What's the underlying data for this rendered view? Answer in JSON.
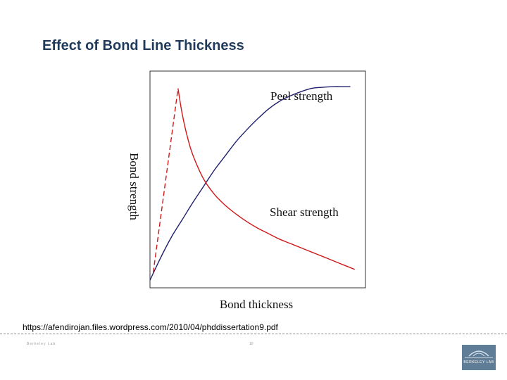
{
  "slide": {
    "title": "Effect of Bond Line Thickness",
    "source": "https://afendirojan.files.wordpress.com/2010/04/phddissertation9.pdf",
    "footer_left": "Berkeley Lab",
    "page_number": "10"
  },
  "logo": {
    "text": "BERKELEY LAB"
  },
  "chart_data": {
    "type": "line",
    "title": "",
    "xlabel": "Bond thickness",
    "ylabel": "Bond strength",
    "xlim": [
      0,
      10
    ],
    "ylim": [
      0,
      10
    ],
    "grid": false,
    "series": [
      {
        "name": "Peel strength",
        "color": "#1f1f6e",
        "style": "solid",
        "x": [
          0,
          0.5,
          1,
          1.5,
          2,
          2.5,
          3,
          3.5,
          4,
          4.5,
          5,
          5.5,
          6,
          6.5,
          7,
          7.5,
          8,
          8.5,
          9,
          9.3
        ],
        "y": [
          0.35,
          1.4,
          2.35,
          3.15,
          3.95,
          4.7,
          5.45,
          6.1,
          6.75,
          7.3,
          7.8,
          8.25,
          8.6,
          8.85,
          9.05,
          9.2,
          9.25,
          9.28,
          9.28,
          9.28
        ]
      },
      {
        "name": "Shear strength",
        "color": "#d01818",
        "style": "dashed",
        "x": [
          0.15,
          1.3
        ],
        "y": [
          0.7,
          9.2
        ]
      },
      {
        "name": "",
        "color": "#d01818",
        "style": "solid",
        "x": [
          1.3,
          1.5,
          1.75,
          2,
          2.5,
          3,
          3.5,
          4,
          4.5,
          5,
          5.5,
          6,
          6.5,
          7,
          7.5,
          8,
          8.5,
          9,
          9.5
        ],
        "y": [
          9.2,
          8.0,
          6.9,
          6.1,
          5.0,
          4.3,
          3.8,
          3.4,
          3.05,
          2.75,
          2.5,
          2.25,
          2.05,
          1.85,
          1.65,
          1.45,
          1.25,
          1.05,
          0.85
        ]
      }
    ],
    "annotations": [
      "Peel strength",
      "Shear strength"
    ]
  }
}
